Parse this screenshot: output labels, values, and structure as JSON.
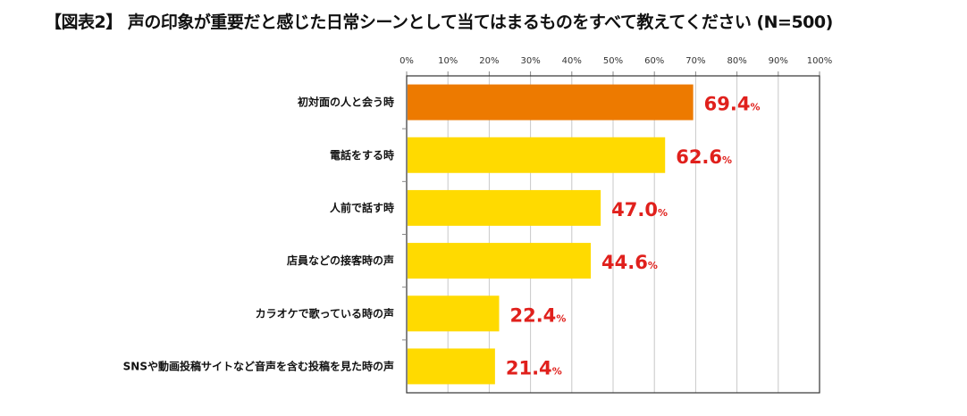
{
  "chart_data": {
    "type": "bar",
    "orientation": "horizontal",
    "title": "【図表2】 声の印象が重要だと感じた日常シーンとして当てはまるものをすべて教えてください (N=500)",
    "categories": [
      "初対面の人と会う時",
      "電話をする時",
      "人前で話す時",
      "店員などの接客時の声",
      "カラオケで歌っている時の声",
      "SNSや動画投稿サイトなど音声を含む投稿を見た時の声"
    ],
    "values": [
      69.4,
      62.6,
      47.0,
      44.6,
      22.4,
      21.4
    ],
    "value_labels": [
      "69.4",
      "62.6",
      "47.0",
      "44.6",
      "22.4",
      "21.4"
    ],
    "value_unit": "%",
    "xlim": [
      0,
      100
    ],
    "xticks": [
      "0%",
      "10%",
      "20%",
      "30%",
      "40%",
      "50%",
      "60%",
      "70%",
      "80%",
      "90%",
      "100%"
    ],
    "xlabel": "",
    "ylabel": "",
    "grid": true,
    "colors": {
      "highlight": "#ED7A00",
      "default": "#FFDA00",
      "label": "#E0201C"
    }
  }
}
